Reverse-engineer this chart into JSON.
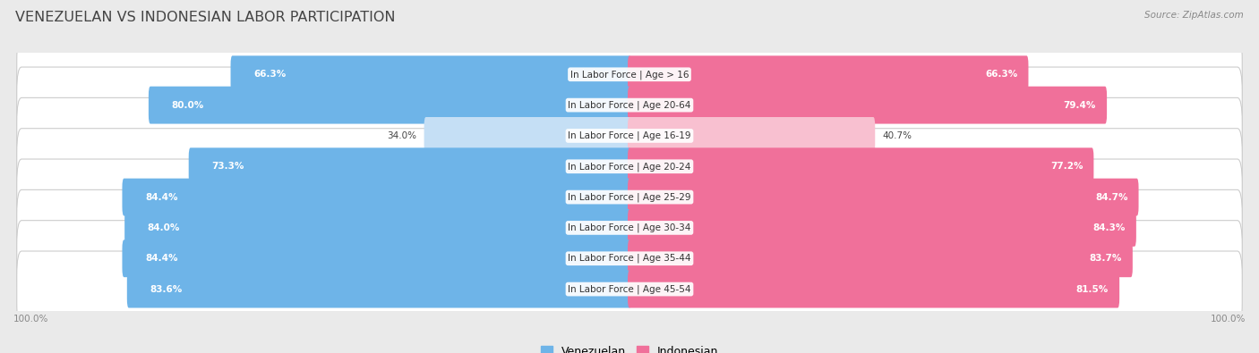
{
  "title": "VENEZUELAN VS INDONESIAN LABOR PARTICIPATION",
  "source": "Source: ZipAtlas.com",
  "categories": [
    "In Labor Force | Age > 16",
    "In Labor Force | Age 20-64",
    "In Labor Force | Age 16-19",
    "In Labor Force | Age 20-24",
    "In Labor Force | Age 25-29",
    "In Labor Force | Age 30-34",
    "In Labor Force | Age 35-44",
    "In Labor Force | Age 45-54"
  ],
  "venezuelan": [
    66.3,
    80.0,
    34.0,
    73.3,
    84.4,
    84.0,
    84.4,
    83.6
  ],
  "indonesian": [
    66.3,
    79.4,
    40.7,
    77.2,
    84.7,
    84.3,
    83.7,
    81.5
  ],
  "venezuelan_color": "#6EB4E8",
  "venezuelan_color_light": "#C5DFF5",
  "indonesian_color": "#F0709A",
  "indonesian_color_light": "#F8C0D0",
  "background_color": "#EAEAEA",
  "row_bg_color": "#FFFFFF",
  "bar_height": 0.62,
  "max_value": 100.0,
  "title_fontsize": 11.5,
  "label_fontsize": 7.5,
  "value_fontsize": 7.5,
  "legend_fontsize": 9,
  "axis_label_fontsize": 7.5
}
